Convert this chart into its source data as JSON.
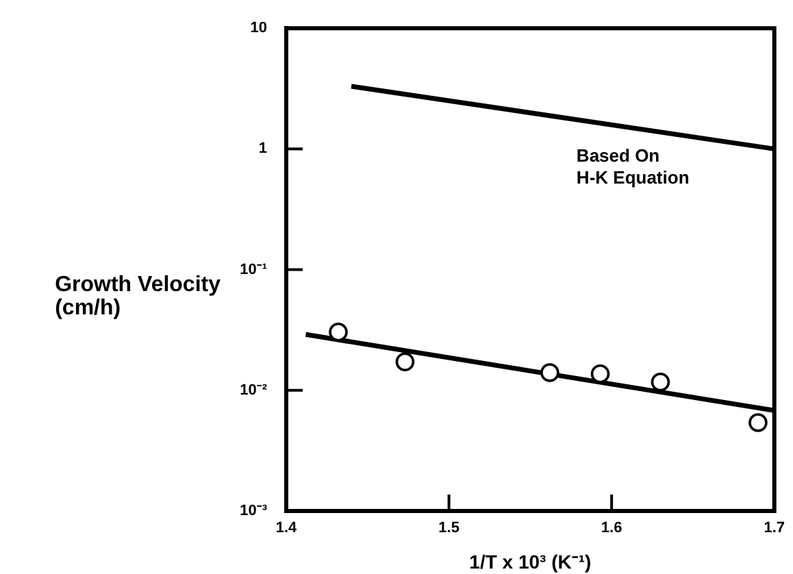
{
  "chart_data": {
    "type": "line",
    "xlabel": "1/T x 10³ (K⁻¹)",
    "ylabel": "Growth Velocity\n(cm/h)",
    "log": "y",
    "grid": false,
    "legend": false,
    "xlim": [
      1.4,
      1.7
    ],
    "xticks": [
      1.4,
      1.5,
      1.6,
      1.7
    ],
    "ylim": [
      0.001,
      10
    ],
    "yticks": [
      {
        "value": 0.001,
        "label": "10⁻³"
      },
      {
        "value": 0.01,
        "label": "10⁻²"
      },
      {
        "value": 0.1,
        "label": "10⁻¹"
      },
      1,
      10
    ],
    "series": [
      {
        "name": "Based On\nH-K Equation",
        "color": "#000000",
        "x": [
          1.44,
          1.7
        ],
        "values": [
          3.3,
          1.0
        ],
        "marker": "none"
      },
      {
        "type": "scatter",
        "color": "#000000",
        "x": [
          1.432,
          1.473,
          1.562,
          1.593,
          1.63,
          1.69
        ],
        "values": [
          0.0304,
          0.0172,
          0.014,
          0.0137,
          0.0117,
          0.0054
        ],
        "marker": "circle"
      },
      {
        "color": "#000000",
        "x": [
          1.412,
          1.7
        ],
        "values": [
          0.029,
          0.0068
        ],
        "marker": "none"
      }
    ]
  }
}
